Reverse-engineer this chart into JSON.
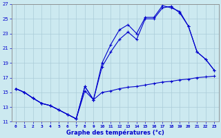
{
  "xlabel": "Graphe des températures (°c)",
  "xlim": [
    -0.5,
    23.5
  ],
  "ylim": [
    11,
    27
  ],
  "xticks": [
    0,
    1,
    2,
    3,
    4,
    5,
    6,
    7,
    8,
    9,
    10,
    11,
    12,
    13,
    14,
    15,
    16,
    17,
    18,
    19,
    20,
    21,
    22,
    23
  ],
  "yticks": [
    11,
    13,
    15,
    17,
    19,
    21,
    23,
    25,
    27
  ],
  "background_color": "#cce9f0",
  "grid_color": "#aaccd8",
  "line_color": "#0000cc",
  "line1_x": [
    0,
    1,
    2,
    3,
    4,
    5,
    6,
    7,
    8,
    9,
    10,
    11,
    12,
    13,
    14,
    15,
    16,
    17,
    18,
    19,
    20,
    21,
    22,
    23
  ],
  "line1_y": [
    15.5,
    15.0,
    14.2,
    13.5,
    13.2,
    12.6,
    12.0,
    11.4,
    15.2,
    14.0,
    15.0,
    15.2,
    15.5,
    15.7,
    15.8,
    16.0,
    16.2,
    16.4,
    16.5,
    16.7,
    16.8,
    17.0,
    17.1,
    17.2
  ],
  "line2_x": [
    0,
    1,
    2,
    3,
    4,
    5,
    6,
    7,
    8,
    9,
    10,
    11,
    12,
    13,
    14,
    15,
    16,
    17,
    18,
    19,
    20,
    21,
    22,
    23
  ],
  "line2_y": [
    15.5,
    15.0,
    14.2,
    13.5,
    13.2,
    12.6,
    12.0,
    11.4,
    15.8,
    14.0,
    18.5,
    20.5,
    22.2,
    23.2,
    22.2,
    25.0,
    25.0,
    26.5,
    26.7,
    25.8,
    24.0,
    20.5,
    19.5,
    18.0
  ],
  "line3_x": [
    0,
    1,
    2,
    3,
    4,
    5,
    6,
    7,
    8,
    9,
    10,
    11,
    12,
    13,
    14,
    15,
    16,
    17,
    18,
    19,
    20,
    21,
    22,
    23
  ],
  "line3_y": [
    15.5,
    15.0,
    14.2,
    13.5,
    13.2,
    12.6,
    12.0,
    11.4,
    15.8,
    14.0,
    19.0,
    21.5,
    23.5,
    24.2,
    23.0,
    25.2,
    25.2,
    26.8,
    26.5,
    26.0,
    24.0,
    20.5,
    19.5,
    18.0
  ]
}
